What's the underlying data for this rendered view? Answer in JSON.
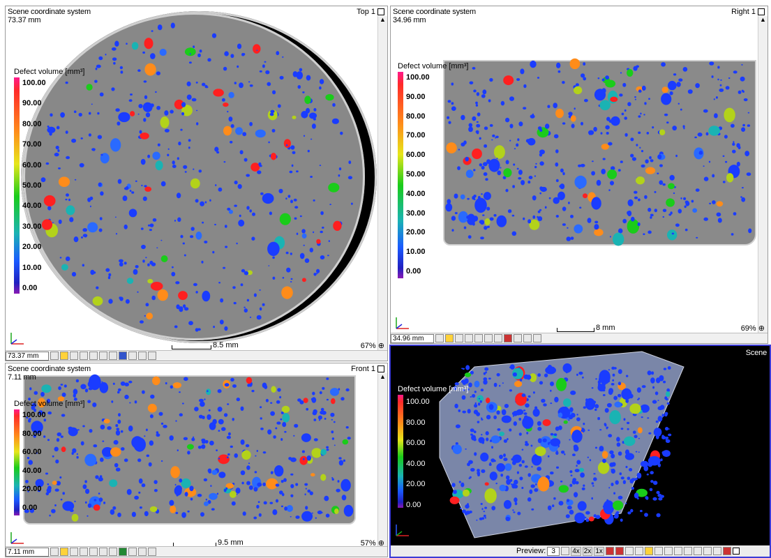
{
  "views": {
    "top": {
      "header": "Scene coordinate system",
      "value": "73.37 mm",
      "title": "Top 1",
      "coord_field": "73.37 mm",
      "scale": "8.5 mm",
      "zoom": "67%"
    },
    "right": {
      "header": "Scene coordinate system",
      "value": "34.96 mm",
      "title": "Right 1",
      "coord_field": "34.96 mm",
      "scale": "8 mm",
      "zoom": "69%"
    },
    "front": {
      "header": "Scene coordinate system",
      "value": "7.11 mm",
      "title": "Front 1",
      "coord_field": "7.11 mm",
      "scale": "9.5 mm",
      "zoom": "57%"
    },
    "scene": {
      "title": "Scene",
      "preview_label": "Preview:",
      "preview_value": "3",
      "btn_4x": "4x",
      "btn_2x": "2x",
      "btn_1x": "1x"
    }
  },
  "legend": {
    "title": "Defect volume [mm³]",
    "ticks_2d": [
      "100.00",
      "90.00",
      "80.00",
      "70.00",
      "60.00",
      "50.00",
      "40.00",
      "30.00",
      "20.00",
      "10.00",
      "0.00"
    ],
    "ticks_front": [
      "100.00",
      "80.00",
      "60.00",
      "40.00",
      "20.00",
      "0.00"
    ],
    "ticks_scene": [
      "100.00",
      "80.00",
      "60.00",
      "40.00",
      "20.00",
      "0.00"
    ]
  },
  "axes": {
    "x": "x",
    "y": "y",
    "z": "z"
  },
  "colors": {
    "scene_border": "#3b3bd6",
    "slice_gray": "#888888",
    "defect_blue": "#1a3cff",
    "defect_green": "#1acc1a",
    "defect_red": "#ff2020"
  }
}
